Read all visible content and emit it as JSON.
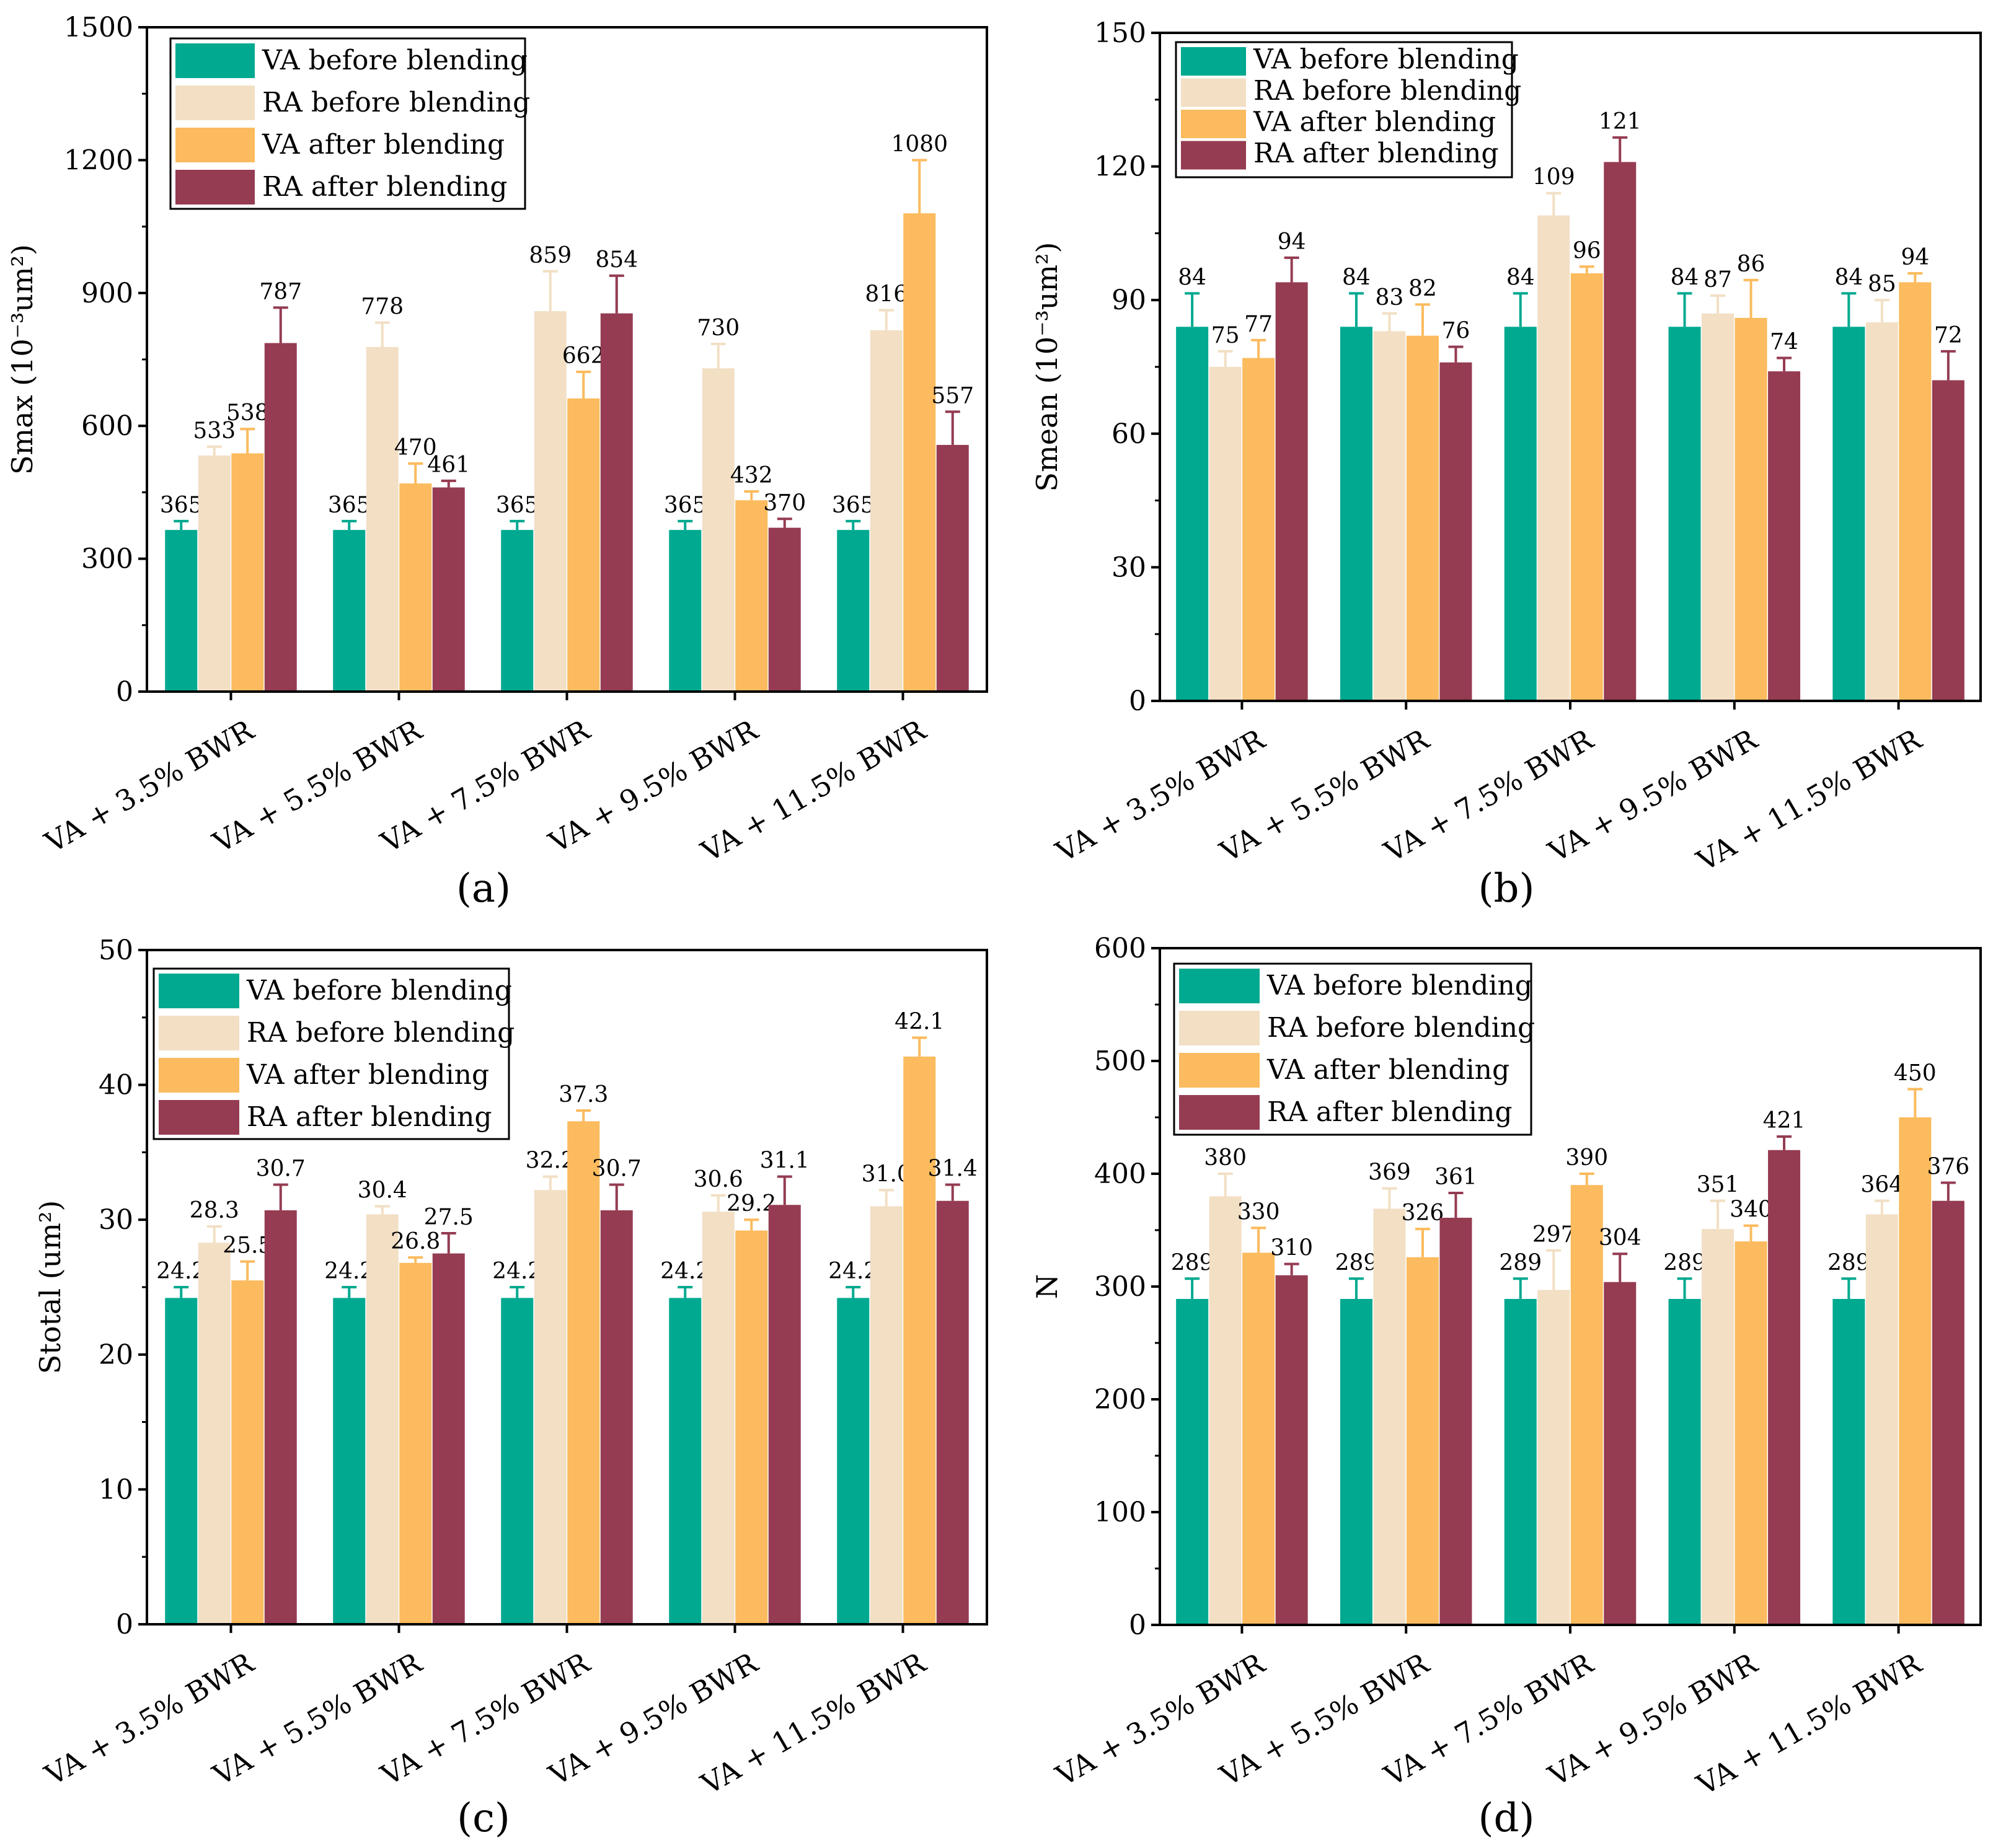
{
  "colors": {
    "va_before": "#00a98f",
    "ra_before": "#f2dfc4",
    "va_after": "#fbbb5e",
    "ra_after": "#953c52"
  },
  "legend": [
    "VA before blending",
    "RA before blending",
    "VA after blending",
    "RA after blending"
  ],
  "chart_data": [
    {
      "type": "bar",
      "panel_label": "(a)",
      "ylabel": "Smax (10⁻³um²)",
      "ylim": [
        0,
        1500
      ],
      "yticks": [
        0,
        300,
        600,
        900,
        1200,
        1500
      ],
      "categories": [
        "VA + 3.5% BWR",
        "VA + 5.5% BWR",
        "VA + 7.5% BWR",
        "VA + 9.5% BWR",
        "VA + 11.5% BWR"
      ],
      "series": [
        {
          "name": "VA before blending",
          "values": [
            365,
            365,
            365,
            365,
            365
          ],
          "errors": [
            20,
            20,
            20,
            20,
            20
          ],
          "labels": [
            "365",
            "365",
            "365",
            "365",
            "365"
          ]
        },
        {
          "name": "RA before blending",
          "values": [
            533,
            778,
            859,
            730,
            816
          ],
          "errors": [
            20,
            55,
            90,
            55,
            45
          ],
          "labels": [
            "533",
            "778",
            "859",
            "730",
            "816"
          ]
        },
        {
          "name": "VA after blending",
          "values": [
            538,
            470,
            662,
            432,
            1080
          ],
          "errors": [
            55,
            45,
            60,
            20,
            120
          ],
          "labels": [
            "538",
            "470",
            "662",
            "432",
            "1080"
          ]
        },
        {
          "name": "RA after blending",
          "values": [
            787,
            461,
            854,
            370,
            557
          ],
          "errors": [
            80,
            15,
            85,
            20,
            75
          ],
          "labels": [
            "787",
            "461",
            "854",
            "370",
            "557"
          ]
        }
      ]
    },
    {
      "type": "bar",
      "panel_label": "(b)",
      "ylabel": "Smean (10⁻³um²)",
      "ylim": [
        0,
        150
      ],
      "yticks": [
        0,
        30,
        60,
        90,
        120,
        150
      ],
      "categories": [
        "VA + 3.5% BWR",
        "VA + 5.5% BWR",
        "VA + 7.5% BWR",
        "VA + 9.5% BWR",
        "VA + 11.5% BWR"
      ],
      "series": [
        {
          "name": "VA before blending",
          "values": [
            84,
            84,
            84,
            84,
            84
          ],
          "errors": [
            7.5,
            7.5,
            7.5,
            7.5,
            7.5
          ],
          "labels": [
            "84",
            "84",
            "84",
            "84",
            "84"
          ]
        },
        {
          "name": "RA before blending",
          "values": [
            75,
            83,
            109,
            87,
            85
          ],
          "errors": [
            3.5,
            4,
            5,
            4,
            5
          ],
          "labels": [
            "75",
            "83",
            "109",
            "87",
            "85"
          ]
        },
        {
          "name": "VA after blending",
          "values": [
            77,
            82,
            96,
            86,
            94
          ],
          "errors": [
            4,
            7,
            1.5,
            8.5,
            2
          ],
          "labels": [
            "77",
            "82",
            "96",
            "86",
            "94"
          ]
        },
        {
          "name": "RA after blending",
          "values": [
            94,
            76,
            121,
            74,
            72
          ],
          "errors": [
            5.5,
            3.5,
            5.5,
            3,
            6.5
          ],
          "labels": [
            "94",
            "76",
            "121",
            "74",
            "72"
          ]
        }
      ]
    },
    {
      "type": "bar",
      "panel_label": "(c)",
      "ylabel": "Stotal (um²)",
      "ylim": [
        0,
        50
      ],
      "yticks": [
        0,
        10,
        20,
        30,
        40,
        50
      ],
      "categories": [
        "VA + 3.5% BWR",
        "VA + 5.5% BWR",
        "VA + 7.5% BWR",
        "VA + 9.5% BWR",
        "VA + 11.5% BWR"
      ],
      "series": [
        {
          "name": "VA before blending",
          "values": [
            24.2,
            24.2,
            24.2,
            24.2,
            24.2
          ],
          "errors": [
            0.8,
            0.8,
            0.8,
            0.8,
            0.8
          ],
          "labels": [
            "24.2",
            "24.2",
            "24.2",
            "24.2",
            "24.2"
          ]
        },
        {
          "name": "RA before blending",
          "values": [
            28.3,
            30.4,
            32.2,
            30.6,
            31.0
          ],
          "errors": [
            1.2,
            0.6,
            1.0,
            1.2,
            1.2
          ],
          "labels": [
            "28.3",
            "30.4",
            "32.2",
            "30.6",
            "31.0"
          ]
        },
        {
          "name": "VA after blending",
          "values": [
            25.5,
            26.8,
            37.3,
            29.2,
            42.1
          ],
          "errors": [
            1.4,
            0.4,
            0.8,
            0.8,
            1.4
          ],
          "labels": [
            "25.5",
            "26.8",
            "37.3",
            "29.2",
            "42.1"
          ]
        },
        {
          "name": "RA after blending",
          "values": [
            30.7,
            27.5,
            30.7,
            31.1,
            31.4
          ],
          "errors": [
            1.9,
            1.5,
            1.9,
            2.1,
            1.2
          ],
          "labels": [
            "30.7",
            "27.5",
            "30.7",
            "31.1",
            "31.4"
          ]
        }
      ]
    },
    {
      "type": "bar",
      "panel_label": "(d)",
      "ylabel": "N",
      "ylim": [
        0,
        600
      ],
      "yticks": [
        0,
        100,
        200,
        300,
        400,
        500,
        600
      ],
      "categories": [
        "VA + 3.5% BWR",
        "VA + 5.5% BWR",
        "VA + 7.5% BWR",
        "VA + 9.5% BWR",
        "VA + 11.5% BWR"
      ],
      "series": [
        {
          "name": "VA before blending",
          "values": [
            289,
            289,
            289,
            289,
            289
          ],
          "errors": [
            18,
            18,
            18,
            18,
            18
          ],
          "labels": [
            "289",
            "289",
            "289",
            "289",
            "289"
          ]
        },
        {
          "name": "RA before blending",
          "values": [
            380,
            369,
            297,
            351,
            364
          ],
          "errors": [
            20,
            18,
            35,
            25,
            12
          ],
          "labels": [
            "380",
            "369",
            "297",
            "351",
            "364"
          ]
        },
        {
          "name": "VA after blending",
          "values": [
            330,
            326,
            390,
            340,
            450
          ],
          "errors": [
            22,
            25,
            10,
            14,
            25
          ],
          "labels": [
            "330",
            "326",
            "390",
            "340",
            "450"
          ]
        },
        {
          "name": "RA after blending",
          "values": [
            310,
            361,
            304,
            421,
            376
          ],
          "errors": [
            10,
            22,
            25,
            12,
            16
          ],
          "labels": [
            "310",
            "361",
            "304",
            "421",
            "376"
          ]
        }
      ]
    }
  ]
}
